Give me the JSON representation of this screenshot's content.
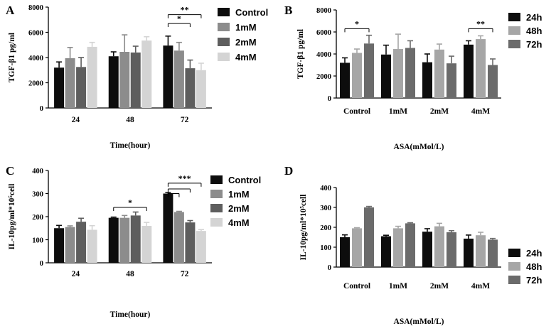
{
  "figure": {
    "panel_labels": [
      "A",
      "B",
      "C",
      "D"
    ]
  },
  "colors": {
    "Control": "#0d0d0d",
    "1mM": "#8c8c8c",
    "2mM": "#5e5e5e",
    "4mM": "#d4d4d4",
    "24h": "#0d0d0d",
    "48h": "#a6a6a6",
    "72h": "#6b6b6b"
  },
  "chart_data": [
    {
      "panel": "A",
      "type": "bar",
      "categories": [
        "24",
        "48",
        "72"
      ],
      "xlabel": "Time(hour)",
      "ylabel": "TGF-β1 pg/ml",
      "ylim": [
        0,
        8000
      ],
      "yticks": [
        0,
        2000,
        4000,
        6000,
        8000
      ],
      "legend_position": "top-right",
      "series": [
        {
          "name": "Control",
          "values": [
            3200,
            4100,
            4950
          ],
          "errors": [
            450,
            350,
            750
          ]
        },
        {
          "name": "1mM",
          "values": [
            3950,
            4450,
            4550
          ],
          "errors": [
            850,
            1350,
            650
          ]
        },
        {
          "name": "2mM",
          "values": [
            3250,
            4400,
            3150
          ],
          "errors": [
            750,
            500,
            650
          ]
        },
        {
          "name": "4mM",
          "values": [
            4850,
            5350,
            3000
          ],
          "errors": [
            350,
            300,
            550
          ]
        }
      ],
      "annotations": [
        {
          "text": "**",
          "from_group": 2,
          "from_series": 0,
          "to_group": 2,
          "to_series": 3,
          "level": 7400
        },
        {
          "text": "*",
          "from_group": 2,
          "from_series": 0,
          "to_group": 2,
          "to_series": 2,
          "level": 6700
        }
      ]
    },
    {
      "panel": "B",
      "type": "bar",
      "categories": [
        "Control",
        "1mM",
        "2mM",
        "4mM"
      ],
      "xlabel": "ASA(mMol/L)",
      "ylabel": "TGF-β1 pg/ml",
      "ylim": [
        0,
        8000
      ],
      "yticks": [
        0,
        2000,
        4000,
        6000,
        8000
      ],
      "legend_position": "right",
      "series": [
        {
          "name": "24h",
          "values": [
            3200,
            3950,
            3250,
            4850
          ],
          "errors": [
            450,
            850,
            750,
            350
          ]
        },
        {
          "name": "48h",
          "values": [
            4100,
            4450,
            4400,
            5350
          ],
          "errors": [
            350,
            1350,
            500,
            300
          ]
        },
        {
          "name": "72h",
          "values": [
            4950,
            4550,
            3150,
            3000
          ],
          "errors": [
            750,
            650,
            650,
            550
          ]
        }
      ],
      "annotations": [
        {
          "text": "*",
          "from_group": 0,
          "from_series": 0,
          "to_group": 0,
          "to_series": 2,
          "level": 6300
        },
        {
          "text": "**",
          "from_group": 3,
          "from_series": 0,
          "to_group": 3,
          "to_series": 2,
          "level": 6300
        }
      ]
    },
    {
      "panel": "C",
      "type": "bar",
      "categories": [
        "24",
        "48",
        "72"
      ],
      "xlabel": "Time(hour)",
      "ylabel": "IL-10pg/ml*10⁵cell",
      "ylim": [
        0,
        400
      ],
      "yticks": [
        0,
        100,
        200,
        300,
        400
      ],
      "legend_position": "right",
      "series": [
        {
          "name": "Control",
          "values": [
            150,
            195,
            300
          ],
          "errors": [
            12,
            3,
            5
          ]
        },
        {
          "name": "1mM",
          "values": [
            155,
            195,
            220
          ],
          "errors": [
            5,
            10,
            3
          ]
        },
        {
          "name": "2mM",
          "values": [
            178,
            205,
            175
          ],
          "errors": [
            15,
            15,
            8
          ]
        },
        {
          "name": "4mM",
          "values": [
            143,
            160,
            138
          ],
          "errors": [
            18,
            15,
            6
          ]
        }
      ],
      "annotations": [
        {
          "text": "*",
          "from_group": 1,
          "from_series": 0,
          "to_group": 1,
          "to_series": 3,
          "level": 240
        },
        {
          "text": "***",
          "from_group": 2,
          "from_series": 0,
          "to_group": 2,
          "to_series": 3,
          "level": 345
        },
        {
          "text": "",
          "from_group": 2,
          "from_series": 0,
          "to_group": 2,
          "to_series": 2,
          "level": 320
        },
        {
          "text": "",
          "from_group": 2,
          "from_series": 0,
          "to_group": 2,
          "to_series": 1,
          "level": 300
        }
      ]
    },
    {
      "panel": "D",
      "type": "bar",
      "categories": [
        "Control",
        "1mM",
        "2mM",
        "4mM"
      ],
      "xlabel": "ASA(mMol/L)",
      "ylabel": "IL-10pg/ml*10⁵cell",
      "ylim": [
        0,
        400
      ],
      "yticks": [
        0,
        100,
        200,
        300,
        400
      ],
      "legend_position": "right",
      "series": [
        {
          "name": "24h",
          "values": [
            150,
            155,
            178,
            143
          ],
          "errors": [
            12,
            5,
            15,
            18
          ]
        },
        {
          "name": "48h",
          "values": [
            195,
            195,
            205,
            160
          ],
          "errors": [
            3,
            10,
            15,
            15
          ]
        },
        {
          "name": "72h",
          "values": [
            300,
            220,
            175,
            138
          ],
          "errors": [
            5,
            3,
            8,
            6
          ]
        }
      ],
      "annotations": []
    }
  ]
}
